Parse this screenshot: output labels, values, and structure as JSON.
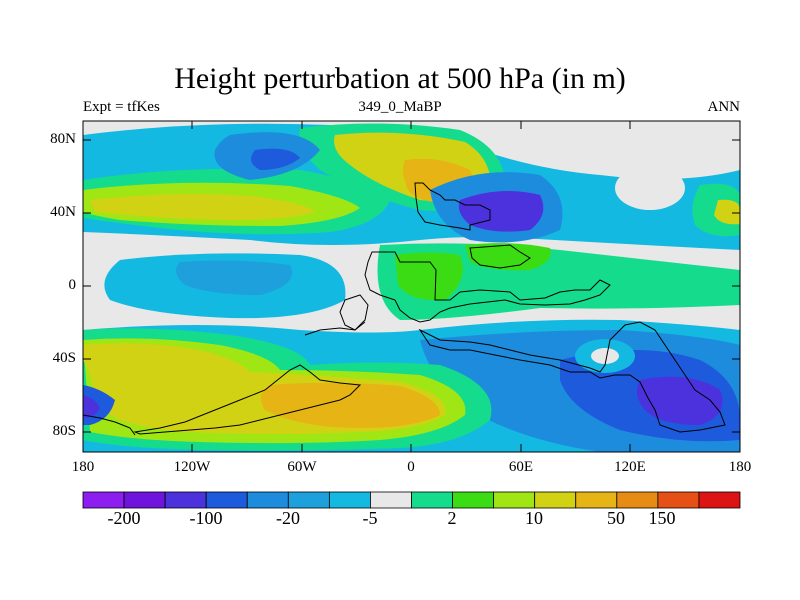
{
  "title": "Height perturbation at 500 hPa (in m)",
  "left_subtitle": "Expt = tfKes",
  "center_subtitle": "349_0_MaBP",
  "right_subtitle": "ANN",
  "lat_labels": [
    "80N",
    "40N",
    "0",
    "40S",
    "80S"
  ],
  "lon_labels": [
    "180",
    "120W",
    "60W",
    "0",
    "60E",
    "120E",
    "180"
  ],
  "colorbar": {
    "labels": [
      "-200",
      "-100",
      "-20",
      "-5",
      "2",
      "10",
      "50",
      "150"
    ],
    "colors": [
      "#8c1ef0",
      "#6e14dc",
      "#4b32dc",
      "#1e5adc",
      "#1e8cdc",
      "#1ea0dc",
      "#14b9e1",
      "#e8e8e8",
      "#14dc8c",
      "#3cdc14",
      "#a0e614",
      "#d2d214",
      "#e6b414",
      "#e68c14",
      "#e65014",
      "#dc1414"
    ]
  },
  "colors": {
    "land_outline": "#000000",
    "neutral": "#e8e8e8"
  }
}
